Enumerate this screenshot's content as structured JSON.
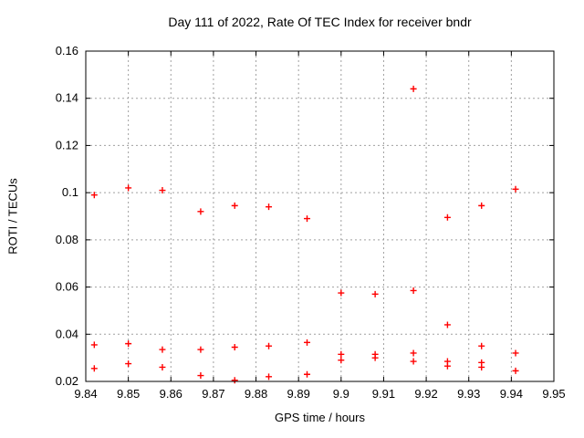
{
  "chart_data": {
    "type": "scatter",
    "title": "Day 111 of 2022, Rate Of TEC Index for receiver bndr",
    "xlabel": "GPS time / hours",
    "ylabel": "ROTI / TECUs",
    "xlim": [
      9.84,
      9.95
    ],
    "ylim": [
      0.02,
      0.16
    ],
    "grid": true,
    "legend_position": "none",
    "marker": {
      "shape": "plus",
      "color": "#ff0000",
      "size": 7
    },
    "grid_color": "#a0a0a0",
    "axis_color": "#000000",
    "xticks": {
      "values": [
        9.84,
        9.85,
        9.86,
        9.87,
        9.88,
        9.89,
        9.9,
        9.91,
        9.92,
        9.93,
        9.94,
        9.95
      ],
      "labels": [
        "9.84",
        "9.85",
        "9.86",
        "9.87",
        "9.88",
        "9.89",
        "9.9",
        "9.91",
        "9.92",
        "9.93",
        "9.94",
        "9.95"
      ]
    },
    "yticks": {
      "values": [
        0.02,
        0.04,
        0.06,
        0.08,
        0.1,
        0.12,
        0.14,
        0.16
      ],
      "labels": [
        "0.02",
        "0.04",
        "0.06",
        "0.08",
        "0.1",
        "0.12",
        "0.14",
        "0.16"
      ]
    },
    "series": [
      {
        "name": "ROTI",
        "points": [
          [
            9.842,
            0.099
          ],
          [
            9.842,
            0.0355
          ],
          [
            9.842,
            0.0255
          ],
          [
            9.85,
            0.102
          ],
          [
            9.85,
            0.036
          ],
          [
            9.85,
            0.0275
          ],
          [
            9.858,
            0.101
          ],
          [
            9.858,
            0.0335
          ],
          [
            9.858,
            0.026
          ],
          [
            9.867,
            0.092
          ],
          [
            9.867,
            0.0335
          ],
          [
            9.867,
            0.0225
          ],
          [
            9.875,
            0.0945
          ],
          [
            9.875,
            0.0345
          ],
          [
            9.875,
            0.0205
          ],
          [
            9.883,
            0.094
          ],
          [
            9.883,
            0.035
          ],
          [
            9.883,
            0.022
          ],
          [
            9.892,
            0.089
          ],
          [
            9.892,
            0.0365
          ],
          [
            9.892,
            0.023
          ],
          [
            9.9,
            0.0575
          ],
          [
            9.9,
            0.0315
          ],
          [
            9.9,
            0.029
          ],
          [
            9.908,
            0.057
          ],
          [
            9.908,
            0.0315
          ],
          [
            9.908,
            0.03
          ],
          [
            9.917,
            0.144
          ],
          [
            9.917,
            0.0585
          ],
          [
            9.917,
            0.032
          ],
          [
            9.917,
            0.0285
          ],
          [
            9.925,
            0.0895
          ],
          [
            9.925,
            0.044
          ],
          [
            9.925,
            0.0285
          ],
          [
            9.925,
            0.0265
          ],
          [
            9.933,
            0.0945
          ],
          [
            9.933,
            0.035
          ],
          [
            9.933,
            0.028
          ],
          [
            9.933,
            0.026
          ],
          [
            9.941,
            0.1015
          ],
          [
            9.941,
            0.032
          ],
          [
            9.941,
            0.0245
          ]
        ]
      }
    ]
  }
}
